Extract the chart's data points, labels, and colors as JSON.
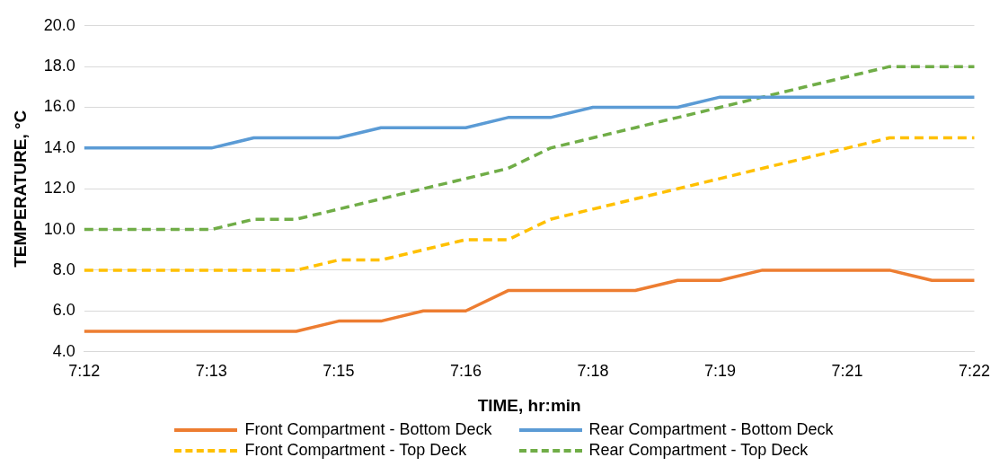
{
  "chart_data": {
    "type": "line",
    "xlabel": "TIME, hr:min",
    "ylabel": "TEMPERATURE, °C",
    "categories": [
      "7:12",
      null,
      null,
      "7:13",
      null,
      null,
      "7:15",
      null,
      null,
      "7:16",
      null,
      null,
      "7:18",
      null,
      null,
      "7:19",
      null,
      null,
      "7:21",
      null,
      null,
      "7:22"
    ],
    "series": [
      {
        "name": "Front Compartment - Bottom Deck",
        "color": "#ed7d31",
        "line_style": "solid",
        "values": [
          5,
          5,
          5,
          5,
          5,
          5,
          5.5,
          5.5,
          6,
          6,
          7,
          7,
          7,
          7,
          7.5,
          7.5,
          8,
          8,
          8,
          8,
          7.5,
          7.5
        ]
      },
      {
        "name": "Rear Compartment - Bottom Deck",
        "color": "#5b9bd5",
        "line_style": "solid",
        "values": [
          14,
          14,
          14,
          14,
          14.5,
          14.5,
          14.5,
          15,
          15,
          15,
          15.5,
          15.5,
          16,
          16,
          16,
          16.5,
          16.5,
          16.5,
          16.5,
          16.5,
          16.5,
          16.5
        ]
      },
      {
        "name": "Front Compartment - Top Deck",
        "color": "#ffc000",
        "line_style": "dashed",
        "values": [
          8,
          8,
          8,
          8,
          8,
          8,
          8.5,
          8.5,
          9,
          9.5,
          9.5,
          10.5,
          11,
          11.5,
          12,
          12.5,
          13,
          13.5,
          14,
          14.5,
          14.5,
          14.5
        ]
      },
      {
        "name": "Rear Compartment - Top Deck",
        "color": "#70ad47",
        "line_style": "dashed",
        "values": [
          10,
          10,
          10,
          10,
          10.5,
          10.5,
          11,
          11.5,
          12,
          12.5,
          13,
          14,
          14.5,
          15,
          15.5,
          16,
          16.5,
          17,
          17.5,
          18,
          18,
          18
        ]
      }
    ],
    "ylim": [
      4,
      20
    ],
    "yticks": [
      {
        "value": 4,
        "label": "4.0"
      },
      {
        "value": 6,
        "label": "6.0"
      },
      {
        "value": 8,
        "label": "8.0"
      },
      {
        "value": 10,
        "label": "10.0"
      },
      {
        "value": 12,
        "label": "12.0"
      },
      {
        "value": 14,
        "label": "14.0"
      },
      {
        "value": 16,
        "label": "16.0"
      },
      {
        "value": 18,
        "label": "18.0"
      },
      {
        "value": 20,
        "label": "20.0"
      }
    ],
    "grid": "y",
    "legend": "bottom",
    "marker": "none"
  }
}
